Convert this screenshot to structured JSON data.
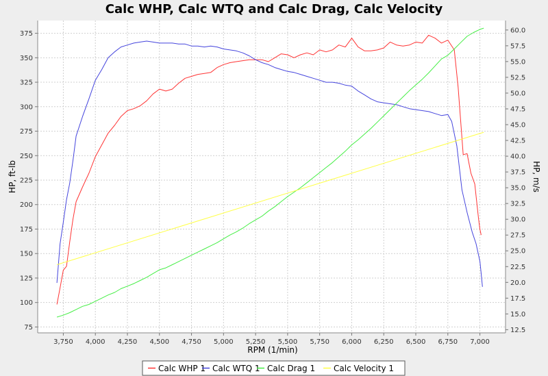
{
  "chart_data": {
    "type": "line",
    "title": "Calc WHP, Calc WTQ and Calc Drag, Calc Velocity",
    "xlabel": "RPM (1/min)",
    "ylabel": "HP, ft-lb",
    "y2label": "HP, m/s",
    "xlim": [
      3550,
      7200
    ],
    "ylim": [
      69,
      388
    ],
    "y2lim": [
      12.0,
      61.5
    ],
    "xticks": [
      3750,
      4000,
      4250,
      4500,
      4750,
      5000,
      5250,
      5500,
      5750,
      6000,
      6250,
      6500,
      6750,
      7000
    ],
    "xtick_labels": [
      "3,750",
      "4,000",
      "4,250",
      "4,500",
      "4,750",
      "5,000",
      "5,250",
      "5,500",
      "5,750",
      "6,000",
      "6,250",
      "6,500",
      "6,750",
      "7,000"
    ],
    "yticks": [
      75,
      100,
      125,
      150,
      175,
      200,
      225,
      250,
      275,
      300,
      325,
      350,
      375
    ],
    "ytick_labels": [
      "75",
      "100",
      "125",
      "150",
      "175",
      "200",
      "225",
      "250",
      "275",
      "300",
      "325",
      "350",
      "375"
    ],
    "y2ticks": [
      12.5,
      15,
      17.5,
      20,
      22.5,
      25,
      27.5,
      30,
      32.5,
      35,
      37.5,
      40,
      42.5,
      45,
      47.5,
      50,
      52.5,
      55,
      57.5,
      60
    ],
    "y2tick_labels": [
      "12.5",
      "15.0",
      "17.5",
      "20.0",
      "22.5",
      "25.0",
      "27.5",
      "30.0",
      "32.5",
      "35.0",
      "37.5",
      "40.0",
      "42.5",
      "45.0",
      "47.5",
      "50.0",
      "52.5",
      "55.0",
      "57.5",
      "60.0"
    ],
    "grid": true,
    "legend_position": "bottom",
    "series": [
      {
        "name": "Calc WHP 1",
        "color": "#ff3333",
        "axis": "left",
        "x": [
          3700,
          3725,
          3750,
          3775,
          3800,
          3825,
          3850,
          3900,
          3950,
          4000,
          4050,
          4100,
          4150,
          4200,
          4250,
          4300,
          4350,
          4400,
          4450,
          4500,
          4550,
          4600,
          4650,
          4700,
          4750,
          4800,
          4850,
          4900,
          4950,
          5000,
          5050,
          5100,
          5150,
          5200,
          5250,
          5300,
          5350,
          5400,
          5450,
          5500,
          5550,
          5600,
          5650,
          5700,
          5750,
          5800,
          5850,
          5900,
          5950,
          6000,
          6050,
          6100,
          6150,
          6200,
          6250,
          6300,
          6350,
          6400,
          6450,
          6500,
          6550,
          6600,
          6650,
          6700,
          6750,
          6800,
          6830,
          6870,
          6900,
          6930,
          6960,
          6990,
          7000,
          7010
        ],
        "values": [
          98,
          115,
          133,
          137,
          162,
          185,
          203,
          218,
          232,
          249,
          261,
          273,
          281,
          290,
          296,
          298,
          301,
          306,
          313,
          318,
          316,
          318,
          324,
          329,
          331,
          333,
          334,
          335,
          340,
          343,
          345,
          346,
          347,
          348,
          348,
          348,
          346,
          350,
          354,
          353,
          350,
          353,
          355,
          353,
          358,
          356,
          358,
          363,
          361,
          370,
          361,
          357,
          357,
          358,
          360,
          366,
          363,
          362,
          363,
          366,
          365,
          373,
          370,
          365,
          368,
          358,
          320,
          251,
          252,
          232,
          221,
          185,
          175,
          169
        ]
      },
      {
        "name": "Calc WTQ 1",
        "color": "#4444dd",
        "axis": "left",
        "x": [
          3700,
          3725,
          3750,
          3775,
          3800,
          3825,
          3850,
          3900,
          3950,
          4000,
          4050,
          4100,
          4150,
          4200,
          4250,
          4300,
          4350,
          4400,
          4450,
          4500,
          4550,
          4600,
          4650,
          4700,
          4750,
          4800,
          4850,
          4900,
          4950,
          5000,
          5050,
          5100,
          5150,
          5200,
          5250,
          5300,
          5350,
          5400,
          5450,
          5500,
          5550,
          5600,
          5650,
          5700,
          5750,
          5800,
          5850,
          5900,
          5950,
          6000,
          6050,
          6100,
          6150,
          6200,
          6250,
          6300,
          6350,
          6400,
          6450,
          6500,
          6550,
          6600,
          6650,
          6700,
          6750,
          6780,
          6820,
          6860,
          6900,
          6940,
          6970,
          7000,
          7010,
          7020
        ],
        "values": [
          120,
          160,
          182,
          205,
          222,
          245,
          270,
          290,
          308,
          327,
          338,
          350,
          356,
          361,
          363,
          365,
          366,
          367,
          366,
          365,
          365,
          365,
          364,
          364,
          362,
          362,
          361,
          362,
          361,
          359,
          358,
          357,
          355,
          352,
          348,
          345,
          343,
          340,
          338,
          336,
          335,
          333,
          331,
          329,
          327,
          325,
          325,
          324,
          322,
          321,
          316,
          312,
          308,
          305,
          304,
          303,
          302,
          300,
          298,
          297,
          296,
          295,
          293,
          291,
          292,
          285,
          260,
          215,
          192,
          172,
          160,
          142,
          130,
          116
        ]
      },
      {
        "name": "Calc Drag 1",
        "color": "#44ee44",
        "axis": "right",
        "x": [
          3700,
          3750,
          3800,
          3850,
          3900,
          3950,
          4000,
          4050,
          4100,
          4150,
          4200,
          4250,
          4300,
          4350,
          4400,
          4450,
          4500,
          4550,
          4600,
          4650,
          4700,
          4750,
          4800,
          4850,
          4900,
          4950,
          5000,
          5050,
          5100,
          5150,
          5200,
          5250,
          5300,
          5350,
          5400,
          5450,
          5500,
          5550,
          5600,
          5650,
          5700,
          5750,
          5800,
          5850,
          5900,
          5950,
          6000,
          6050,
          6100,
          6150,
          6200,
          6250,
          6300,
          6350,
          6400,
          6450,
          6500,
          6550,
          6600,
          6650,
          6700,
          6750,
          6800,
          6850,
          6900,
          6950,
          7000,
          7030
        ],
        "values": [
          14.5,
          14.8,
          15.2,
          15.7,
          16.2,
          16.5,
          17.0,
          17.5,
          18.0,
          18.4,
          19.0,
          19.4,
          19.8,
          20.3,
          20.8,
          21.4,
          22.0,
          22.3,
          22.8,
          23.3,
          23.8,
          24.3,
          24.8,
          25.3,
          25.8,
          26.3,
          26.9,
          27.5,
          28.0,
          28.6,
          29.3,
          29.9,
          30.5,
          31.3,
          32.0,
          32.8,
          33.6,
          34.3,
          35.0,
          35.8,
          36.6,
          37.4,
          38.2,
          39.0,
          39.9,
          40.8,
          41.8,
          42.6,
          43.5,
          44.4,
          45.4,
          46.4,
          47.4,
          48.4,
          49.4,
          50.4,
          51.3,
          52.2,
          53.2,
          54.3,
          55.4,
          56.0,
          57.0,
          58.0,
          59.0,
          59.6,
          60.1,
          60.3
        ]
      },
      {
        "name": "Calc Velocity 1",
        "color": "#ffff44",
        "axis": "right",
        "x": [
          3700,
          7030
        ],
        "values": [
          22.8,
          43.8
        ]
      }
    ]
  }
}
